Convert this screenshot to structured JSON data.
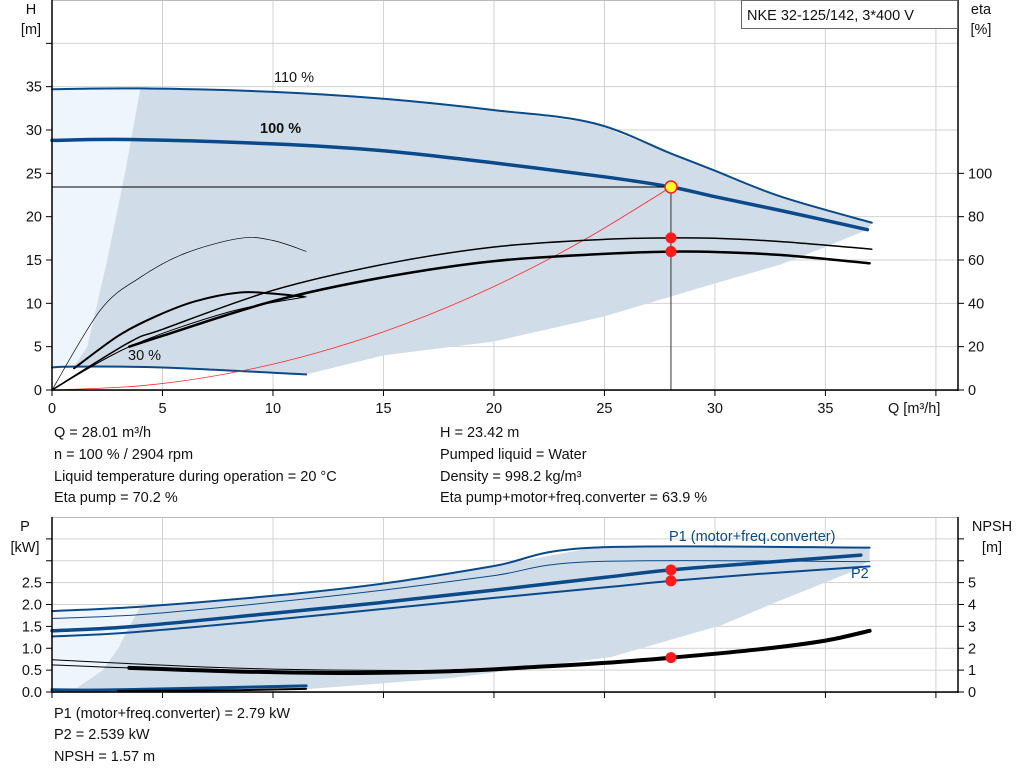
{
  "colors": {
    "curve_blue": "#0a4a8a",
    "region": "#d0dce8",
    "region_light": "#eef5fd",
    "system_curve": "#ff2a2a",
    "marker": "#ff1a1a",
    "duty_point": "#ffff33",
    "grid": "#d2d2d2"
  },
  "chart_data": [
    {
      "type": "line",
      "title": "NKE 32-125/142, 3*400 V",
      "xlabel": "Q [m³/h]",
      "ylabel": "H",
      "ylabel_unit": "[m]",
      "y2label": "eta",
      "y2label_unit": "[%]",
      "xlim": [
        0,
        41
      ],
      "ylim": [
        0,
        45
      ],
      "y2lim": [
        0,
        180
      ],
      "grid": true,
      "x_ticks": [
        0,
        5,
        10,
        15,
        20,
        25,
        30,
        35,
        40
      ],
      "x_tick_labels": [
        "0",
        "5",
        "10",
        "15",
        "20",
        "25",
        "30",
        "35",
        ""
      ],
      "y_ticks": [
        0,
        5,
        10,
        15,
        20,
        25,
        30,
        35,
        40
      ],
      "y_tick_labels": [
        "0",
        "5",
        "10",
        "15",
        "20",
        "25",
        "30",
        "35",
        ""
      ],
      "y2_ticks": [
        0,
        20,
        40,
        60,
        80,
        100
      ],
      "y2_tick_labels": [
        "0",
        "20",
        "40",
        "60",
        "80",
        "100"
      ],
      "regions": [
        {
          "axis": "left",
          "fill": "region_light",
          "points": [
            [
              0,
              2.6
            ],
            [
              0,
              34.7
            ],
            [
              4,
              34.8
            ],
            [
              3.3,
              25
            ],
            [
              2.5,
              15
            ],
            [
              1.6,
              5
            ],
            [
              1,
              2.7
            ]
          ]
        },
        {
          "axis": "left",
          "fill": "region",
          "points": [
            [
              1,
              2.7
            ],
            [
              1.6,
              5
            ],
            [
              2.5,
              15
            ],
            [
              3.3,
              25
            ],
            [
              4,
              34.8
            ],
            [
              10,
              34.4
            ],
            [
              15,
              33.6
            ],
            [
              20,
              32.3
            ],
            [
              24.5,
              30.8
            ],
            [
              28,
              27.3
            ],
            [
              30,
              25.3
            ],
            [
              33,
              22.3
            ],
            [
              37.1,
              19.3
            ],
            [
              36.9,
              18.5
            ],
            [
              35,
              16.5
            ],
            [
              33,
              14.5
            ],
            [
              30,
              12.3
            ],
            [
              25,
              8.5
            ],
            [
              20,
              5.6
            ],
            [
              15,
              4.0
            ],
            [
              11.5,
              1.8
            ],
            [
              5,
              2.6
            ]
          ]
        }
      ],
      "series": [
        {
          "name": "110 %",
          "axis": "left",
          "color": "curve_blue",
          "points": [
            [
              0,
              34.7
            ],
            [
              4,
              34.8
            ],
            [
              10,
              34.4
            ],
            [
              15,
              33.6
            ],
            [
              20,
              32.3
            ],
            [
              24.5,
              30.8
            ],
            [
              28,
              27.3
            ],
            [
              30,
              25.3
            ],
            [
              33,
              22.3
            ],
            [
              37.1,
              19.3
            ]
          ]
        },
        {
          "name": "100 %",
          "axis": "left",
          "color": "curve_blue",
          "points": [
            [
              0,
              28.8
            ],
            [
              3.5,
              28.9
            ],
            [
              10,
              28.4
            ],
            [
              15,
              27.6
            ],
            [
              20,
              26.2
            ],
            [
              25,
              24.6
            ],
            [
              28.01,
              23.42
            ],
            [
              30,
              22.3
            ],
            [
              33,
              20.7
            ],
            [
              36.9,
              18.5
            ]
          ]
        },
        {
          "name": "30 %",
          "axis": "left",
          "color": "curve_blue",
          "points": [
            [
              0,
              2.6
            ],
            [
              1,
              2.7
            ],
            [
              5,
              2.6
            ],
            [
              11.5,
              1.8
            ]
          ]
        },
        {
          "axis": "left",
          "color": "system_curve",
          "points": [
            [
              0,
              0
            ],
            [
              4,
              0.48
            ],
            [
              8,
              1.91
            ],
            [
              12,
              4.3
            ],
            [
              16,
              7.64
            ],
            [
              20,
              11.94
            ],
            [
              24,
              17.2
            ],
            [
              28.01,
              23.42
            ]
          ]
        },
        {
          "axis": "right",
          "color": "#000000",
          "points": [
            [
              0,
              0
            ],
            [
              2.2,
              37
            ],
            [
              4,
              52
            ],
            [
              6,
              63
            ],
            [
              8.5,
              70
            ],
            [
              10,
              69
            ],
            [
              11.5,
              64
            ]
          ]
        },
        {
          "axis": "right",
          "color": "#000000",
          "points": [
            [
              1,
              10
            ],
            [
              3,
              25
            ],
            [
              4.7,
              34
            ],
            [
              6.5,
              41
            ],
            [
              8.5,
              45
            ],
            [
              10,
              44.5
            ],
            [
              11.4,
              43
            ]
          ]
        },
        {
          "axis": "right",
          "color": "#000000",
          "points": [
            [
              0,
              0
            ],
            [
              3.5,
              20
            ],
            [
              8,
              36
            ],
            [
              11.5,
              43
            ]
          ]
        },
        {
          "axis": "right",
          "color": "#000000",
          "points": [
            [
              0,
              0
            ],
            [
              3.5,
              22
            ],
            [
              5,
              28
            ],
            [
              10,
              46
            ],
            [
              15,
              58
            ],
            [
              20,
              66
            ],
            [
              25,
              69.5
            ],
            [
              28.01,
              70.2
            ],
            [
              30,
              70
            ],
            [
              33,
              68.5
            ],
            [
              37.1,
              65
            ]
          ]
        },
        {
          "axis": "right",
          "color": "#000000",
          "points": [
            [
              3.5,
              20
            ],
            [
              5,
              25
            ],
            [
              10,
              41
            ],
            [
              15,
              52
            ],
            [
              20,
              59.5
            ],
            [
              25,
              62.8
            ],
            [
              28.01,
              63.9
            ],
            [
              30,
              63.7
            ],
            [
              33,
              62.3
            ],
            [
              37,
              58.5
            ]
          ]
        }
      ],
      "duty_point": {
        "q": 28.01,
        "h": 23.42
      },
      "markers": [
        {
          "axis": "right",
          "x": 28.01,
          "y": 70.2
        },
        {
          "axis": "right",
          "x": 28.01,
          "y": 63.9
        }
      ]
    },
    {
      "type": "line",
      "ylabel": "P",
      "ylabel_unit": "[kW]",
      "y2label": "NPSH",
      "y2label_unit": "[m]",
      "xlim": [
        0,
        41
      ],
      "ylim": [
        0,
        4
      ],
      "y2lim": [
        0,
        8
      ],
      "grid": true,
      "x_ticks": [
        0,
        5,
        10,
        15,
        20,
        25,
        30,
        35,
        40
      ],
      "y_ticks": [
        0,
        0.5,
        1.0,
        1.5,
        2.0,
        2.5,
        3.0,
        3.5
      ],
      "y_tick_labels": [
        "0.0",
        "0.5",
        "1.0",
        "1.5",
        "2.0",
        "2.5",
        "",
        ""
      ],
      "y2_ticks": [
        0,
        1,
        2,
        3,
        4,
        5,
        6,
        7
      ],
      "y2_tick_labels": [
        "0",
        "1",
        "2",
        "3",
        "4",
        "5",
        "",
        ""
      ],
      "regions": [
        {
          "axis": "left",
          "fill": "region_light",
          "points": [
            [
              0,
              0.05
            ],
            [
              0,
              1.85
            ],
            [
              4,
              1.95
            ],
            [
              3.5,
              1.5
            ],
            [
              3,
              1.0
            ],
            [
              2.3,
              0.5
            ],
            [
              1,
              0.05
            ]
          ]
        },
        {
          "axis": "left",
          "fill": "region",
          "points": [
            [
              1,
              0.05
            ],
            [
              2.3,
              0.5
            ],
            [
              3,
              1.0
            ],
            [
              3.5,
              1.5
            ],
            [
              4,
              1.95
            ],
            [
              10,
              2.2
            ],
            [
              15,
              2.48
            ],
            [
              20,
              2.88
            ],
            [
              24.5,
              3.3
            ],
            [
              37,
              3.3
            ],
            [
              37,
              3.0
            ],
            [
              36.2,
              2.75
            ],
            [
              33,
              2.1
            ],
            [
              30.3,
              1.53
            ],
            [
              25.3,
              0.8
            ],
            [
              18.1,
              0.32
            ],
            [
              11.6,
              0.07
            ]
          ]
        }
      ],
      "series": [
        {
          "axis": "left",
          "color": "curve_blue",
          "points": [
            [
              0,
              1.85
            ],
            [
              4,
              1.95
            ],
            [
              10,
              2.2
            ],
            [
              15,
              2.48
            ],
            [
              20,
              2.88
            ],
            [
              24.5,
              3.3
            ],
            [
              37,
              3.3
            ]
          ]
        },
        {
          "axis": "left",
          "color": "curve_blue",
          "points": [
            [
              0,
              1.68
            ],
            [
              4,
              1.77
            ],
            [
              10,
              2.05
            ],
            [
              15,
              2.33
            ],
            [
              20,
              2.66
            ],
            [
              24.5,
              2.98
            ],
            [
              37,
              2.98
            ]
          ]
        },
        {
          "name": "P1 (motor+freq.converter)",
          "axis": "left",
          "color": "curve_blue",
          "points": [
            [
              0,
              1.4
            ],
            [
              3.5,
              1.49
            ],
            [
              10,
              1.8
            ],
            [
              15,
              2.05
            ],
            [
              20,
              2.33
            ],
            [
              25,
              2.62
            ],
            [
              28.01,
              2.79
            ],
            [
              32,
              2.95
            ],
            [
              36.6,
              3.13
            ]
          ]
        },
        {
          "name": "P2",
          "axis": "left",
          "color": "curve_blue",
          "points": [
            [
              0,
              1.27
            ],
            [
              3.5,
              1.36
            ],
            [
              10,
              1.65
            ],
            [
              15,
              1.9
            ],
            [
              20,
              2.15
            ],
            [
              25,
              2.39
            ],
            [
              28.01,
              2.539
            ],
            [
              32,
              2.7
            ],
            [
              37,
              2.87
            ]
          ]
        },
        {
          "axis": "left",
          "color": "curve_blue",
          "points": [
            [
              0,
              0.05
            ],
            [
              3,
              0.05
            ],
            [
              11.5,
              0.14
            ]
          ]
        },
        {
          "axis": "right",
          "color": "#000000",
          "points": [
            [
              0,
              1.47
            ],
            [
              3.5,
              1.3
            ],
            [
              8,
              1.1
            ],
            [
              13,
              1.0
            ],
            [
              18,
              0.98
            ]
          ]
        },
        {
          "axis": "right",
          "color": "#000000",
          "points": [
            [
              0,
              1.24
            ],
            [
              3.5,
              1.1
            ],
            [
              8,
              1.0
            ]
          ]
        },
        {
          "axis": "right",
          "color": "#000000",
          "points": [
            [
              3.5,
              1.1
            ],
            [
              8,
              0.95
            ],
            [
              13,
              0.87
            ],
            [
              18,
              0.95
            ],
            [
              22,
              1.15
            ],
            [
              25,
              1.33
            ],
            [
              28.01,
              1.57
            ],
            [
              32,
              1.95
            ],
            [
              35,
              2.35
            ],
            [
              37,
              2.8
            ]
          ]
        },
        {
          "axis": "right",
          "color": "#000000",
          "points": [
            [
              3,
              0.05
            ],
            [
              8,
              0.08
            ],
            [
              11.5,
              0.14
            ]
          ]
        }
      ],
      "markers": [
        {
          "axis": "left",
          "x": 28.01,
          "y": 2.79
        },
        {
          "axis": "left",
          "x": 28.01,
          "y": 2.539
        },
        {
          "axis": "right",
          "x": 28.01,
          "y": 1.57
        }
      ]
    }
  ],
  "info_top": {
    "col1": [
      "Q = 28.01 m³/h",
      "n = 100 % / 2904 rpm",
      "Liquid temperature during operation = 20 °C",
      "Eta pump = 70.2 %"
    ],
    "col2": [
      "H = 23.42 m",
      "Pumped liquid = Water",
      "Density = 998.2 kg/m³",
      "Eta pump+motor+freq.converter = 63.9 %"
    ]
  },
  "info_bottom": [
    "P1 (motor+freq.converter) = 2.79 kW",
    "P2 = 2.539 kW",
    "NPSH = 1.57 m"
  ]
}
